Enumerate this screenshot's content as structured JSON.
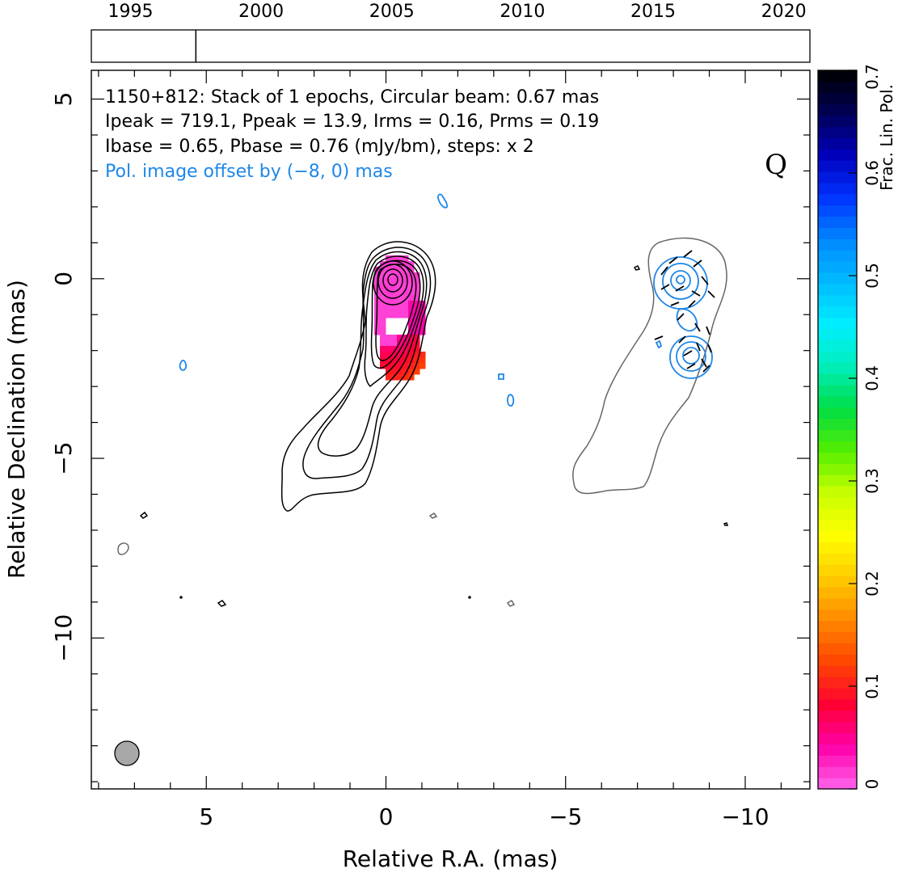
{
  "chart_data": {
    "type": "contour",
    "source_name": "1150+812",
    "annotations": {
      "line1": "1150+812: Stack of 1 epochs, Circular beam: 0.67 mas",
      "line2": "Ipeak = 719.1, Ppeak = 13.9, Irms = 0.16, Prms = 0.19",
      "line3": "Ibase = 0.65, Pbase = 0.76 (mJy/bm), steps: x 2",
      "line4": "Pol. image offset by (−8, 0) mas",
      "band": "Q"
    },
    "xlabel": "Relative R.A. (mas)",
    "ylabel": "Relative Declination (mas)",
    "xlim": [
      8.2,
      -11.8
    ],
    "ylim": [
      -14.2,
      5.8
    ],
    "x_ticks": [
      {
        "v": 5,
        "label": "5"
      },
      {
        "v": 0,
        "label": "0"
      },
      {
        "v": -5,
        "label": "−5"
      },
      {
        "v": -10,
        "label": "−10"
      }
    ],
    "y_ticks": [
      {
        "v": 5,
        "label": "5"
      },
      {
        "v": 0,
        "label": "0"
      },
      {
        "v": -5,
        "label": "−5"
      },
      {
        "v": -10,
        "label": "−10"
      }
    ],
    "beam_fwhm_mas": 0.67,
    "timeline": {
      "years": [
        1995,
        2000,
        2005,
        2010,
        2015,
        2020
      ],
      "range": [
        1993.5,
        2021.0
      ],
      "epochs": [
        1997.5
      ]
    },
    "colorbar": {
      "label": "Frac. Lin. Pol.",
      "min": 0,
      "max": 0.7,
      "ticks": [
        {
          "v": 0,
          "label": "0"
        },
        {
          "v": 0.1,
          "label": "0.1"
        },
        {
          "v": 0.2,
          "label": "0.2"
        },
        {
          "v": 0.3,
          "label": "0.3"
        },
        {
          "v": 0.4,
          "label": "0.4"
        },
        {
          "v": 0.5,
          "label": "0.5"
        },
        {
          "v": 0.6,
          "label": "0.6"
        },
        {
          "v": 0.7,
          "label": "0.7"
        }
      ],
      "stops": [
        "#ff66ee",
        "#ff00aa",
        "#ff0033",
        "#ff4400",
        "#ff8800",
        "#ffcc00",
        "#ffff00",
        "#c8ff00",
        "#55ee00",
        "#00dd44",
        "#00eebb",
        "#00eeff",
        "#00bbff",
        "#0088ff",
        "#0033ff",
        "#0000bb",
        "#000055",
        "#000000"
      ]
    },
    "colors": {
      "total_intensity_contours": "#000000",
      "polarization_contours": "#1f87e8",
      "offset_envelope": "#666666",
      "beam_fill": "#a8a8a8"
    },
    "core_position_mas": [
      0,
      0
    ],
    "pol_offset_mas": [
      -8,
      0
    ]
  }
}
